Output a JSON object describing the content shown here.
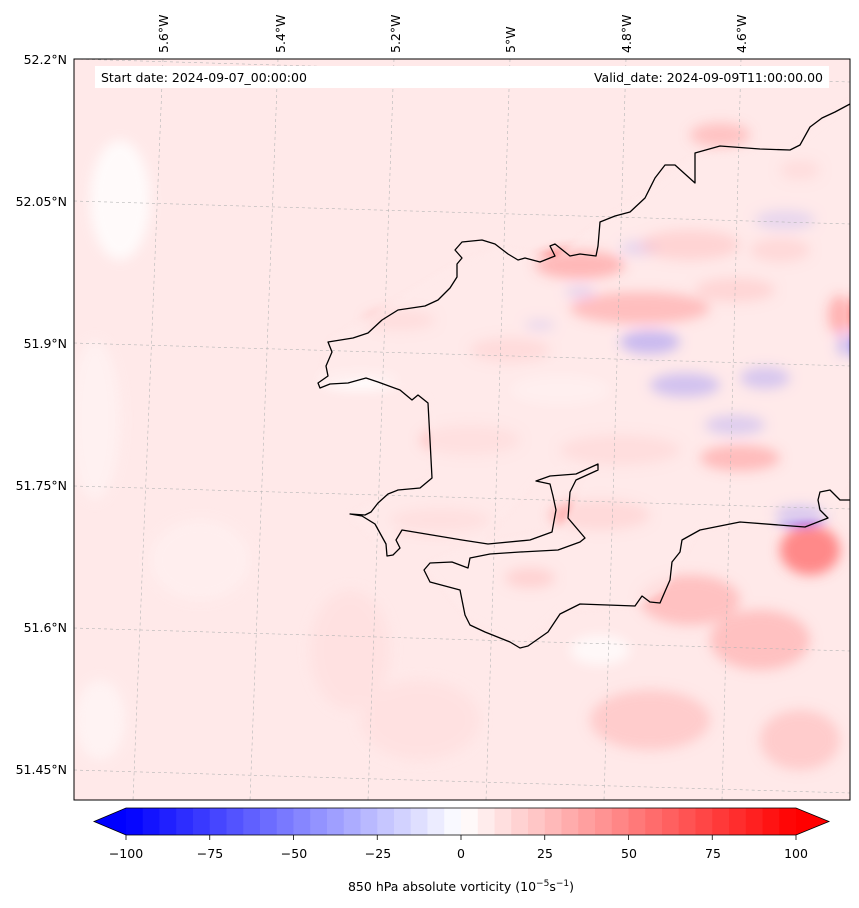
{
  "header": {
    "start_date": "Start date: 2024-09-07_00:00:00",
    "valid_date": "Valid_date: 2024-09-09T11:00:00.00"
  },
  "axes": {
    "lon_labels": [
      "5.6°W",
      "5.4°W",
      "5.2°W",
      "5°W",
      "4.8°W",
      "4.6°W"
    ],
    "lat_labels": [
      "52.2°N",
      "52.05°N",
      "51.9°N",
      "51.75°N",
      "51.6°N",
      "51.45°N"
    ]
  },
  "colorbar": {
    "ticks": [
      "−100",
      "−75",
      "−50",
      "−25",
      "0",
      "25",
      "50",
      "75",
      "100"
    ],
    "label": "850 hPa absolute vorticity (10",
    "label_exp1": "−5",
    "label_mid": "s",
    "label_exp2": "−1",
    "label_end": ")",
    "min_color": "#0000ff",
    "mid_color": "#ffffff",
    "max_color": "#ff0000"
  },
  "colors": {
    "background_field": "#ffe8e8",
    "coastline": "#000000",
    "gridline": "#b0b0b0"
  }
}
